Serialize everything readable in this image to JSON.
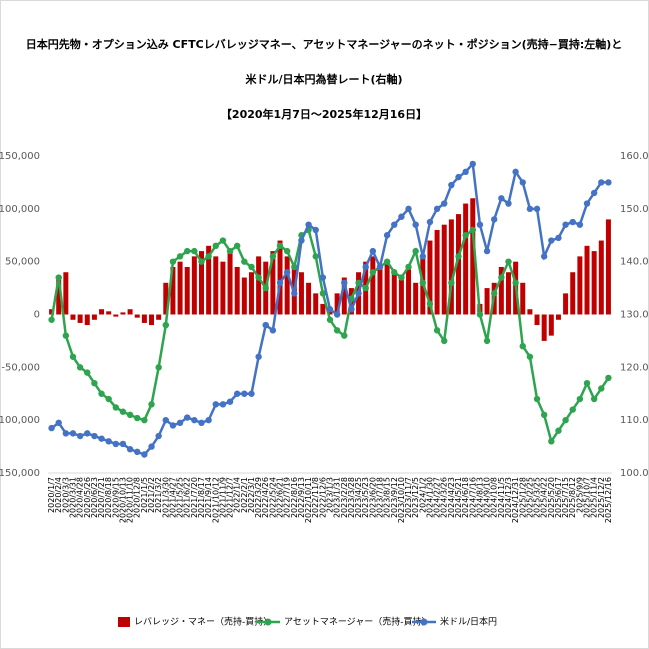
{
  "chart_data": {
    "type": "bar-line",
    "title": [
      "日本円先物・オプション込み CFTCレバレッジマネー、アセットマネージャーのネット・ポジション(売持−買持:左軸)と",
      "米ドル/日本円為替レート(右軸)",
      "【2020年1月7日～2025年12月16日】"
    ],
    "categories": [
      "2020/1/7",
      "2020/2/4",
      "2020/3/3",
      "2020/3/31",
      "2020/4/28",
      "2020/5/26",
      "2020/6/23",
      "2020/7/21",
      "2020/8/18",
      "2020/9/15",
      "2020/10/13",
      "2020/11/10",
      "2020/12/8",
      "2021/1/5",
      "2021/2/2",
      "2021/3/2",
      "2021/3/30",
      "2021/4/27",
      "2021/5/25",
      "2021/6/22",
      "2021/7/20",
      "2021/8/17",
      "2021/9/14",
      "2021/10/12",
      "2021/11/9",
      "2021/12/7",
      "2022/1/4",
      "2022/2/1",
      "2022/3/1",
      "2022/3/29",
      "2022/4/26",
      "2022/5/24",
      "2022/6/21",
      "2022/7/19",
      "2022/8/16",
      "2022/9/13",
      "2022/10/11",
      "2022/11/8",
      "2022/12/6",
      "2023/1/3",
      "2023/1/31",
      "2023/2/28",
      "2023/3/28",
      "2023/4/25",
      "2023/5/23",
      "2023/6/20",
      "2023/7/18",
      "2023/8/15",
      "2023/9/12",
      "2023/10/10",
      "2023/11/7",
      "2023/12/5",
      "2024/1/2",
      "2024/1/30",
      "2024/2/27",
      "2024/3/26",
      "2024/4/23",
      "2024/5/21",
      "2024/6/18",
      "2024/7/16",
      "2024/8/13",
      "2024/9/10",
      "2024/10/8",
      "2024/11/5",
      "2024/12/3",
      "2024/12/31",
      "2025/1/28",
      "2025/2/25",
      "2025/3/25",
      "2025/4/22",
      "2025/5/20",
      "2025/6/17",
      "2025/7/15",
      "2025/8/12",
      "2025/9/9",
      "2025/10/7",
      "2025/11/4",
      "2025/12/2",
      "2025/12/16"
    ],
    "series": [
      {
        "name": "レバレッジ・マネー（売持-買持）",
        "type": "bar",
        "color": "#c00000",
        "values": [
          5000,
          35000,
          40000,
          -5000,
          -8000,
          -10000,
          -5000,
          5000,
          3000,
          -2000,
          2000,
          5000,
          -3000,
          -8000,
          -10000,
          -5000,
          30000,
          45000,
          50000,
          45000,
          55000,
          60000,
          65000,
          55000,
          50000,
          60000,
          45000,
          35000,
          40000,
          55000,
          50000,
          60000,
          70000,
          55000,
          45000,
          40000,
          30000,
          20000,
          10000,
          5000,
          20000,
          35000,
          25000,
          40000,
          50000,
          55000,
          45000,
          50000,
          40000,
          35000,
          45000,
          30000,
          55000,
          70000,
          80000,
          85000,
          90000,
          95000,
          105000,
          110000,
          10000,
          25000,
          30000,
          45000,
          40000,
          50000,
          30000,
          5000,
          -10000,
          -25000,
          -20000,
          -5000,
          20000,
          40000,
          55000,
          65000,
          60000,
          70000,
          90000
        ]
      },
      {
        "name": "アセットマネージャー（売持-買持）",
        "type": "line",
        "color": "#2ea44f",
        "values": [
          -5000,
          35000,
          -20000,
          -40000,
          -50000,
          -55000,
          -65000,
          -75000,
          -80000,
          -88000,
          -92000,
          -95000,
          -98000,
          -100000,
          -85000,
          -50000,
          -10000,
          50000,
          55000,
          60000,
          60000,
          50000,
          55000,
          65000,
          70000,
          60000,
          65000,
          50000,
          45000,
          35000,
          25000,
          55000,
          65000,
          60000,
          45000,
          75000,
          80000,
          55000,
          20000,
          -5000,
          -15000,
          -20000,
          15000,
          30000,
          25000,
          40000,
          45000,
          50000,
          40000,
          35000,
          45000,
          60000,
          30000,
          10000,
          -15000,
          -25000,
          30000,
          55000,
          75000,
          80000,
          0,
          -25000,
          20000,
          35000,
          50000,
          30000,
          -30000,
          -40000,
          -80000,
          -95000,
          -120000,
          -110000,
          -100000,
          -90000,
          -80000,
          -65000,
          -80000,
          -70000,
          -60000
        ]
      },
      {
        "name": "米ドル/日本円",
        "type": "line",
        "axis": "y2",
        "color": "#4472c4",
        "values": [
          108.5,
          109.5,
          107.5,
          107.5,
          107,
          107.5,
          107,
          106.5,
          106,
          105.5,
          105.5,
          104.5,
          104,
          103.5,
          105,
          107,
          110,
          109,
          109.5,
          110.5,
          110,
          109.5,
          110,
          113,
          113,
          113.5,
          115,
          115,
          115,
          122,
          128,
          127,
          136,
          138,
          134,
          144,
          147,
          146,
          137,
          131,
          130,
          136,
          131,
          134,
          139,
          142,
          139,
          145,
          147,
          148.5,
          150,
          147,
          141,
          147.5,
          150,
          151,
          154.5,
          156,
          157,
          158.5,
          147,
          142,
          148,
          152,
          151,
          157,
          155,
          150,
          150,
          141,
          144,
          144.5,
          147,
          147.5,
          147,
          151,
          153,
          155,
          155
        ]
      }
    ],
    "ylim": [
      -150000,
      150000
    ],
    "yticks": [
      {
        "value": -150000,
        "label": "-150,000"
      },
      {
        "value": -100000,
        "label": "-100,000"
      },
      {
        "value": -50000,
        "label": "-50,000"
      },
      0,
      {
        "value": 50000,
        "label": "50,000"
      },
      {
        "value": 100000,
        "label": "100,000"
      },
      {
        "value": 150000,
        "label": "150,000"
      }
    ],
    "negative_tick_color": "#ff0000",
    "y2lim": [
      100,
      160
    ],
    "y2ticks": [
      {
        "value": 100,
        "label": "100.0"
      },
      {
        "value": 110,
        "label": "110.0"
      },
      {
        "value": 120,
        "label": "120.0"
      },
      {
        "value": 130,
        "label": "130.0"
      },
      {
        "value": 140,
        "label": "140.0"
      },
      {
        "value": 150,
        "label": "150.0"
      },
      {
        "value": 160,
        "label": "160.0"
      }
    ],
    "grid": false,
    "legend": "bottom"
  }
}
